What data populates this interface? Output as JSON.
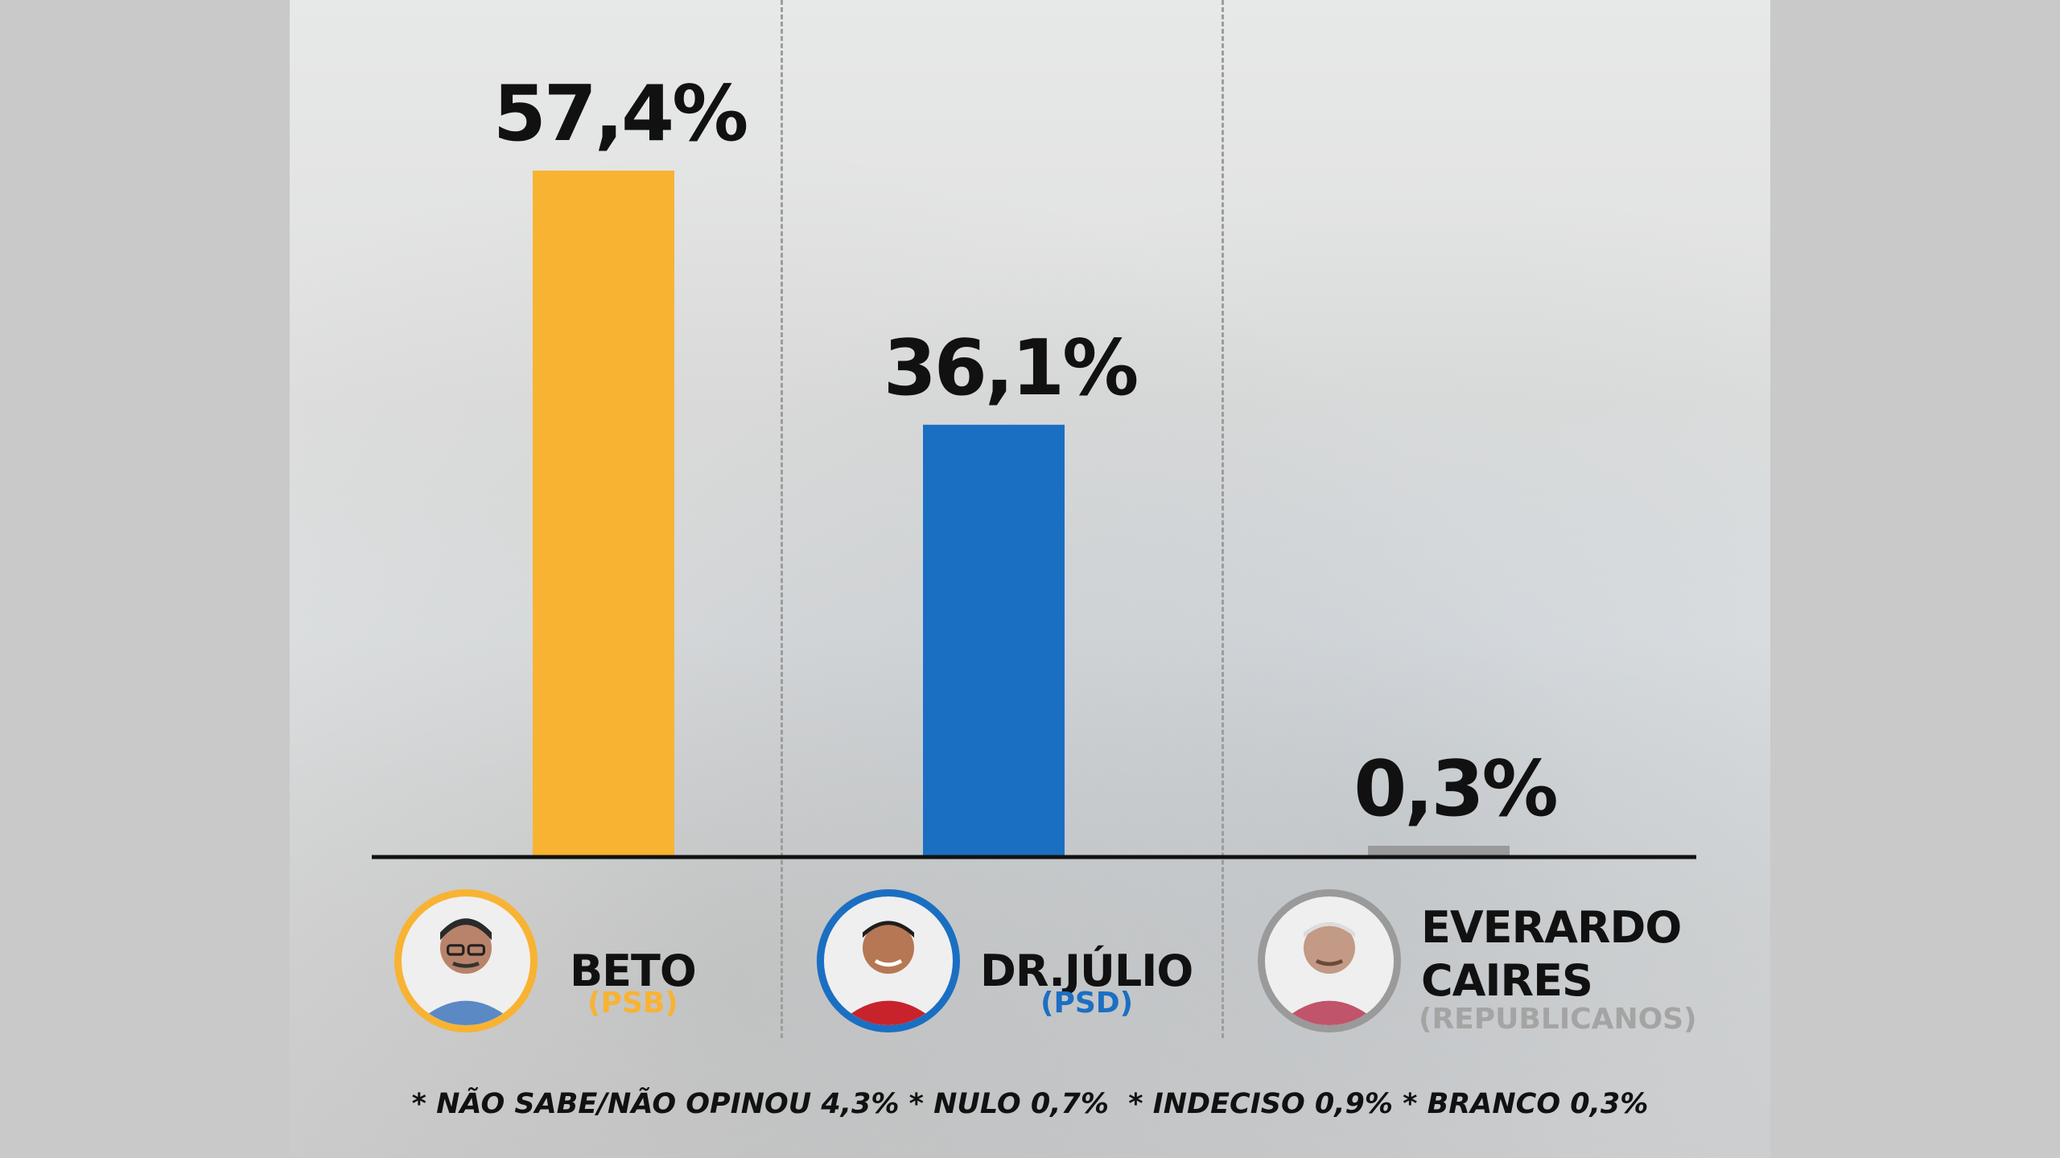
{
  "chart_data": {
    "type": "bar",
    "categories": [
      "BETO",
      "DR.JÚLIO",
      "EVERARDO CAIRES"
    ],
    "values": [
      57.4,
      36.1,
      0.3
    ],
    "value_labels": [
      "57,4%",
      "36,1%",
      "0,3%"
    ],
    "ylim": [
      0,
      57.4
    ],
    "grid": false,
    "title": "",
    "xlabel": "",
    "ylabel": ""
  },
  "candidates": [
    {
      "name_lines": [
        "BETO"
      ],
      "party": "(PSB)",
      "color": "#f8b333",
      "photo_icon": "candidate-photo-icon"
    },
    {
      "name_lines": [
        "DR.JÚLIO"
      ],
      "party": "(PSD)",
      "color": "#1b6fc2",
      "photo_icon": "candidate-photo-icon"
    },
    {
      "name_lines": [
        "EVERARDO",
        "CAIRES"
      ],
      "party": "(REPUBLICANOS)",
      "color": "#9a9a9a",
      "photo_icon": "candidate-photo-icon"
    }
  ],
  "footnote": "* NÃO SABE/NÃO OPINOU 4,3% * NULO 0,7%  * INDECISO 0,9% * BRANCO 0,3%"
}
